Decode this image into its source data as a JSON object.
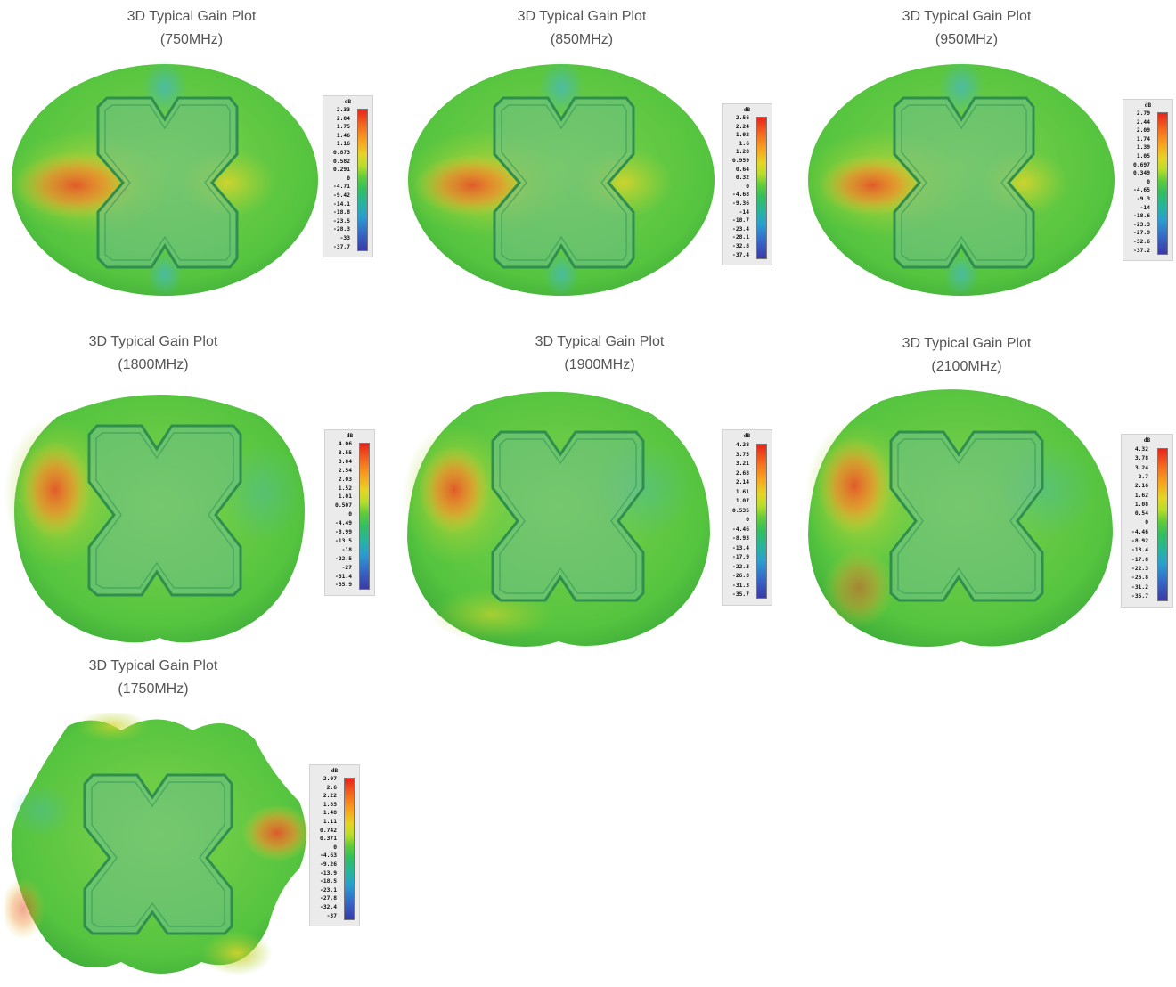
{
  "plots": [
    {
      "title": "3D Typical Gain Plot",
      "freq": "(750MHz)",
      "unit": "dB",
      "scale": [
        "2.33",
        "2.04",
        "1.75",
        "1.46",
        "1.16",
        "0.873",
        "0.582",
        "0.291",
        "0",
        "-4.71",
        "-9.42",
        "-14.1",
        "-18.8",
        "-23.5",
        "-28.3",
        "-33",
        "-37.7"
      ]
    },
    {
      "title": "3D Typical Gain Plot",
      "freq": "(850MHz)",
      "unit": "dB",
      "scale": [
        "2.56",
        "2.24",
        "1.92",
        "1.6",
        "1.28",
        "0.959",
        "0.64",
        "0.32",
        "0",
        "-4.68",
        "-9.36",
        "-14",
        "-18.7",
        "-23.4",
        "-28.1",
        "-32.8",
        "-37.4"
      ]
    },
    {
      "title": "3D Typical Gain Plot",
      "freq": "(950MHz)",
      "unit": "dB",
      "scale": [
        "2.79",
        "2.44",
        "2.09",
        "1.74",
        "1.39",
        "1.05",
        "0.697",
        "0.349",
        "0",
        "-4.65",
        "-9.3",
        "-14",
        "-18.6",
        "-23.3",
        "-27.9",
        "-32.6",
        "-37.2"
      ]
    },
    {
      "title": "3D Typical Gain Plot",
      "freq": "(1800MHz)",
      "unit": "dB",
      "scale": [
        "4.06",
        "3.55",
        "3.04",
        "2.54",
        "2.03",
        "1.52",
        "1.01",
        "0.507",
        "0",
        "-4.49",
        "-8.99",
        "-13.5",
        "-18",
        "-22.5",
        "-27",
        "-31.4",
        "-35.9"
      ]
    },
    {
      "title": "3D Typical Gain Plot",
      "freq": "(1900MHz)",
      "unit": "dB",
      "scale": [
        "4.28",
        "3.75",
        "3.21",
        "2.68",
        "2.14",
        "1.61",
        "1.07",
        "0.535",
        "0",
        "-4.46",
        "-8.93",
        "-13.4",
        "-17.9",
        "-22.3",
        "-26.8",
        "-31.3",
        "-35.7"
      ]
    },
    {
      "title": "3D Typical Gain Plot",
      "freq": "(2100MHz)",
      "unit": "dB",
      "scale": [
        "4.32",
        "3.78",
        "3.24",
        "2.7",
        "2.16",
        "1.62",
        "1.08",
        "0.54",
        "0",
        "-4.46",
        "-8.92",
        "-13.4",
        "-17.8",
        "-22.3",
        "-26.8",
        "-31.2",
        "-35.7"
      ]
    },
    {
      "title": "3D Typical Gain Plot",
      "freq": "(1750MHz)",
      "unit": "dB",
      "scale": [
        "2.97",
        "2.6",
        "2.22",
        "1.85",
        "1.48",
        "1.11",
        "0.742",
        "0.371",
        "0",
        "-4.63",
        "-9.26",
        "-13.9",
        "-18.5",
        "-23.1",
        "-27.8",
        "-32.4",
        "-37"
      ]
    }
  ]
}
